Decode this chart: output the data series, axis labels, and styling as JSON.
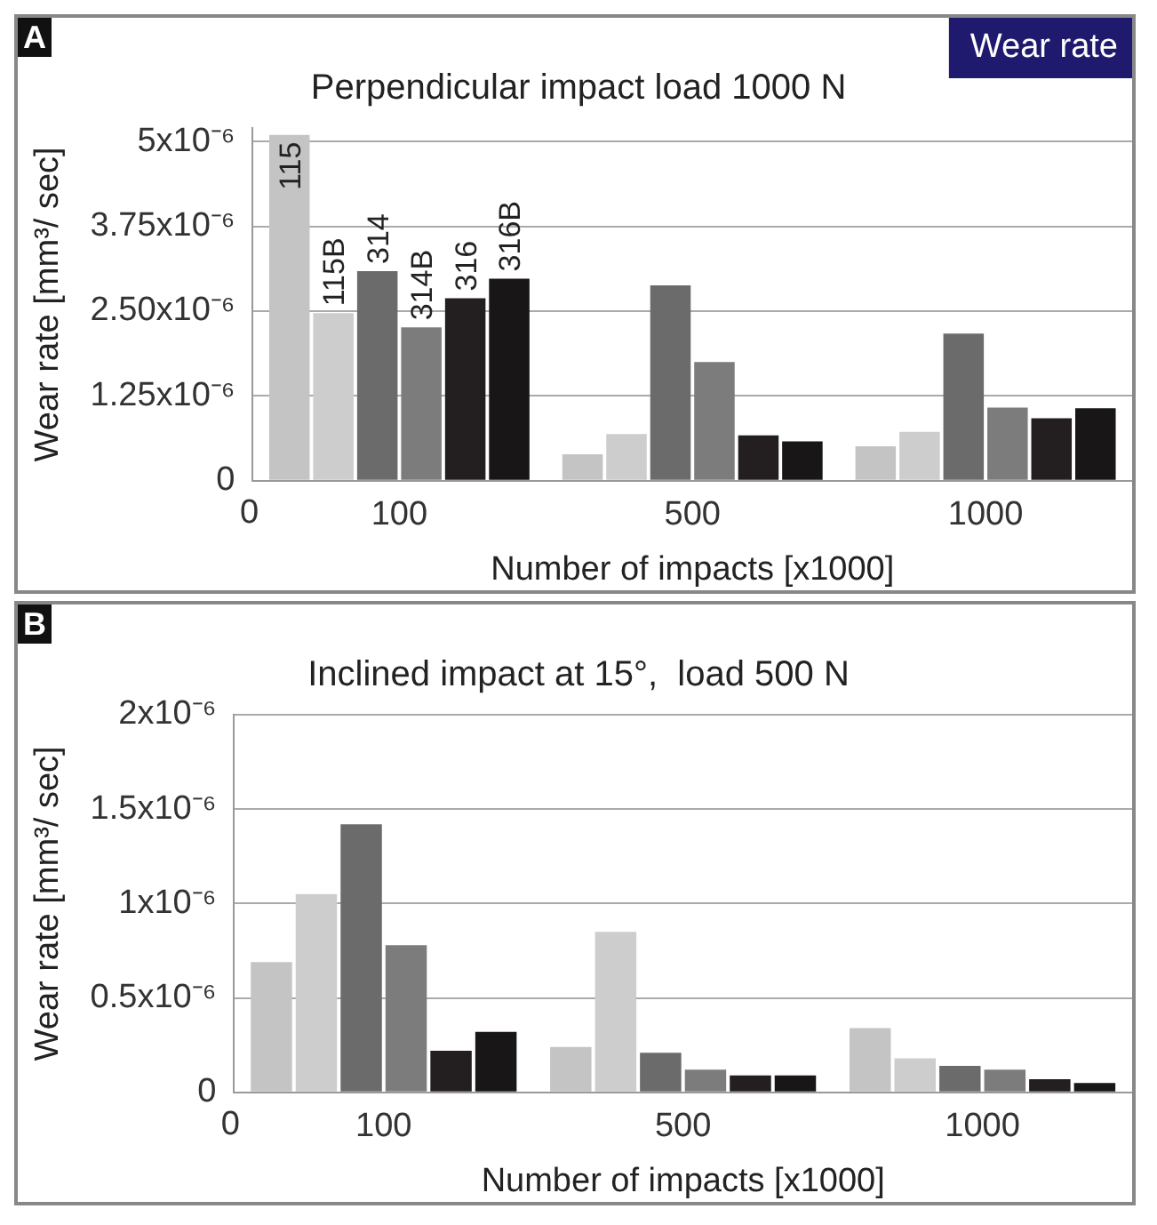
{
  "chart_data": [
    {
      "type": "bar",
      "title": "Perpendicular impact load 1000 N",
      "xlabel": "Number of impacts [x1000]",
      "ylabel": "Wear rate [mm³/ sec]",
      "categories": [
        "100",
        "500",
        "1000"
      ],
      "series": [
        {
          "name": "115",
          "color": "#c4c4c4",
          "values": [
            5.1e-06,
            3.9e-07,
            5.1e-07
          ]
        },
        {
          "name": "115B",
          "color": "#cdcdcd",
          "values": [
            2.47e-06,
            6.9e-07,
            7.2e-07
          ]
        },
        {
          "name": "314",
          "color": "#6b6b6b",
          "values": [
            3.09e-06,
            2.88e-06,
            2.17e-06
          ]
        },
        {
          "name": "314B",
          "color": "#7c7c7c",
          "values": [
            2.26e-06,
            1.75e-06,
            1.08e-06
          ]
        },
        {
          "name": "316",
          "color": "#231f20",
          "values": [
            2.69e-06,
            6.7e-07,
            9.2e-07
          ]
        },
        {
          "name": "316B",
          "color": "#181616",
          "values": [
            2.98e-06,
            5.8e-07,
            1.07e-06
          ]
        }
      ],
      "ylim": [
        0,
        5.2e-06
      ],
      "yticks": [
        {
          "value": 0,
          "label": "0"
        },
        {
          "value": 1.25e-06,
          "label": "1.25x10⁻⁶"
        },
        {
          "value": 2.5e-06,
          "label": "2.50x10⁻⁶"
        },
        {
          "value": 3.75e-06,
          "label": "3.75x10⁻⁶"
        },
        {
          "value": 5e-06,
          "label": "5x10⁻⁶"
        }
      ],
      "grid": "y",
      "annotations": [
        "A",
        "Wear rate",
        "0"
      ]
    },
    {
      "type": "bar",
      "title": "Inclined impact at 15°,  load 500 N",
      "xlabel": "Number of impacts [x1000]",
      "ylabel": "Wear rate [mm³/ sec]",
      "categories": [
        "100",
        "500",
        "1000"
      ],
      "series": [
        {
          "color": "#c4c4c4",
          "values": [
            6.9e-07,
            2.4e-07,
            3.4e-07
          ]
        },
        {
          "color": "#cdcdcd",
          "values": [
            1.05e-06,
            8.5e-07,
            1.8e-07
          ]
        },
        {
          "color": "#6b6b6b",
          "values": [
            1.42e-06,
            2.1e-07,
            1.4e-07
          ]
        },
        {
          "color": "#7c7c7c",
          "values": [
            7.8e-07,
            1.2e-07,
            1.2e-07
          ]
        },
        {
          "color": "#231f20",
          "values": [
            2.2e-07,
            9e-08,
            7e-08
          ]
        },
        {
          "color": "#181616",
          "values": [
            3.2e-07,
            9e-08,
            5e-08
          ]
        }
      ],
      "ylim": [
        0,
        2e-06
      ],
      "yticks": [
        {
          "value": 0,
          "label": "0"
        },
        {
          "value": 5e-07,
          "label": "0.5x10⁻⁶"
        },
        {
          "value": 1e-06,
          "label": "1x10⁻⁶"
        },
        {
          "value": 1.5e-06,
          "label": "1.5x10⁻⁶"
        },
        {
          "value": 2e-06,
          "label": "2x10⁻⁶"
        }
      ],
      "grid": "y",
      "annotations": [
        "B",
        "0"
      ]
    }
  ]
}
